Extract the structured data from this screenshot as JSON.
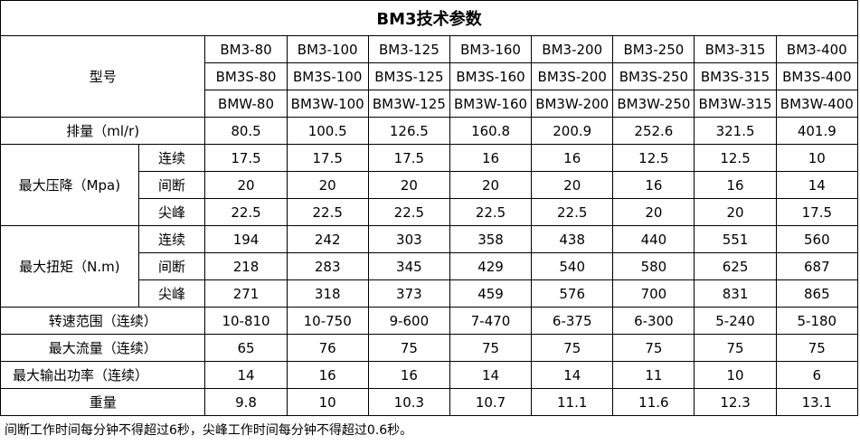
{
  "title": "BM3技术参数",
  "model_label": "型号",
  "models": [
    [
      "BM3-80",
      "BM3S-80",
      "BMW-80"
    ],
    [
      "BM3-100",
      "BM3S-100",
      "BM3W-100"
    ],
    [
      "BM3-125",
      "BM3S-125",
      "BM3W-125"
    ],
    [
      "BM3-160",
      "BM3S-160",
      "BM3W-160"
    ],
    [
      "BM3-200",
      "BM3S-200",
      "BM3W-200"
    ],
    [
      "BM3-250",
      "BM3S-250",
      "BM3W-250"
    ],
    [
      "BM3-315",
      "BM3S-315",
      "BM3W-315"
    ],
    [
      "BM3-400",
      "BM3S-400",
      "BM3W-400"
    ]
  ],
  "displacement": {
    "label": "排量（ml/r)",
    "values": [
      "80.5",
      "100.5",
      "126.5",
      "160.8",
      "200.9",
      "252.6",
      "321.5",
      "401.9"
    ]
  },
  "pressure": {
    "label": "最大压降（Mpa)",
    "rows": [
      {
        "sub": "连续",
        "values": [
          "17.5",
          "17.5",
          "17.5",
          "16",
          "16",
          "12.5",
          "12.5",
          "10"
        ]
      },
      {
        "sub": "间断",
        "values": [
          "20",
          "20",
          "20",
          "20",
          "20",
          "16",
          "16",
          "14"
        ]
      },
      {
        "sub": "尖峰",
        "values": [
          "22.5",
          "22.5",
          "22.5",
          "22.5",
          "22.5",
          "20",
          "20",
          "17.5"
        ]
      }
    ]
  },
  "torque": {
    "label": "最大扭矩（N.m)",
    "rows": [
      {
        "sub": "连续",
        "values": [
          "194",
          "242",
          "303",
          "358",
          "438",
          "440",
          "551",
          "560"
        ]
      },
      {
        "sub": "间断",
        "values": [
          "218",
          "283",
          "345",
          "429",
          "540",
          "580",
          "625",
          "687"
        ]
      },
      {
        "sub": "尖峰",
        "values": [
          "271",
          "318",
          "373",
          "459",
          "576",
          "700",
          "831",
          "865"
        ]
      }
    ]
  },
  "speed": {
    "label": "转速范围（连续）",
    "values": [
      "10-810",
      "10-750",
      "9-600",
      "7-470",
      "6-375",
      "6-300",
      "5-240",
      "5-180"
    ]
  },
  "flow": {
    "label": "最大流量（连续）",
    "values": [
      "65",
      "76",
      "75",
      "75",
      "75",
      "75",
      "75",
      "75"
    ]
  },
  "power": {
    "label": "最大输出功率（连续）",
    "values": [
      "14",
      "16",
      "16",
      "14",
      "14",
      "11",
      "10",
      "6"
    ]
  },
  "weight": {
    "label": "重量",
    "values": [
      "9.8",
      "10",
      "10.3",
      "10.7",
      "11.1",
      "11.6",
      "12.3",
      "13.1"
    ]
  },
  "footnote": "间断工作时间每分钟不得超过6秒，尖峰工作时间每分钟不得超过0.6秒。"
}
